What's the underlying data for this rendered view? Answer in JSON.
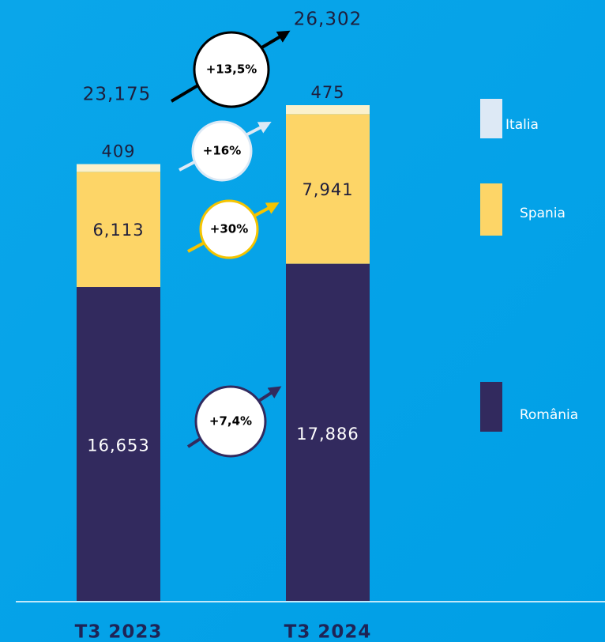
{
  "chart_data": {
    "type": "stacked_bar",
    "categories": [
      "T3 2023",
      "T3 2024"
    ],
    "series": [
      {
        "name": "România",
        "color": "#322a5e",
        "values": [
          16653,
          17886
        ],
        "value_labels": [
          "16,653",
          "17,886"
        ]
      },
      {
        "name": "Spania",
        "color": "#fdd567",
        "values": [
          6113,
          7941
        ],
        "value_labels": [
          "6,113",
          "7,941"
        ]
      },
      {
        "name": "Italia",
        "color": "#fbf1cc",
        "values": [
          409,
          475
        ],
        "value_labels": [
          "409",
          "475"
        ]
      }
    ],
    "totals": [
      23175,
      26302
    ],
    "total_labels": [
      "23,175",
      "26,302"
    ],
    "annotations": [
      "+13,5%",
      "+16%",
      "+30%",
      "+7,4%"
    ]
  }
}
